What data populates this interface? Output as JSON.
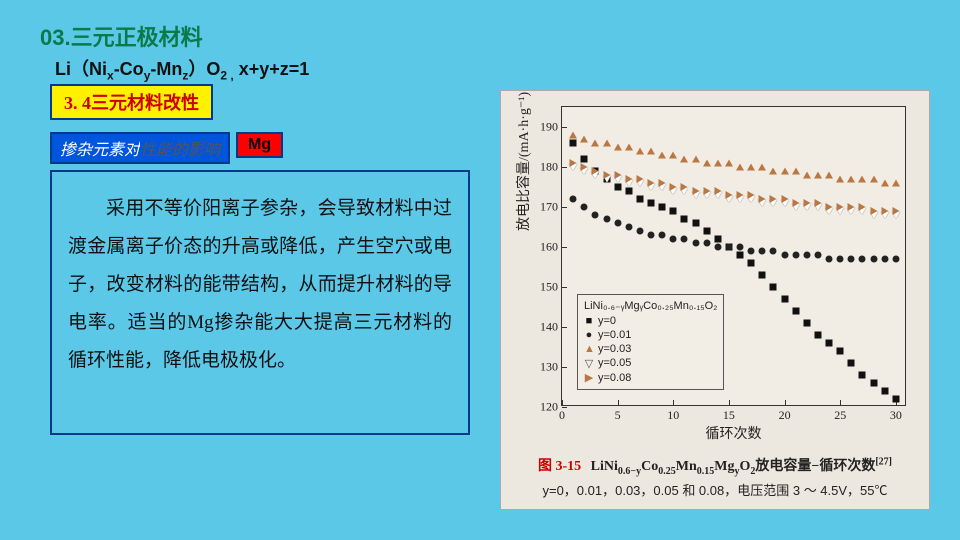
{
  "slide": {
    "title": "03.三元正极材料",
    "formula_html": "Li（Ni<sub>x</sub>-Co<sub>y</sub>-Mn<sub>z</sub>）O<sub>2 ,</sub> x+y+z=1",
    "section": "3. 4三元材料改性",
    "tag_main_a": "掺杂元素对",
    "tag_main_b": "性能的影响",
    "tag_element": "Mg",
    "body": "采用不等价阳离子参杂，会导致材料中过渡金属离子价态的升高或降低，产生空穴或电子，改变材料的能带结构，从而提升材料的导电率。适当的Mg掺杂能大大提高三元材料的循环性能，降低电极极化。"
  },
  "chart": {
    "type": "scatter",
    "background_color": "#ede8df",
    "plot_bg": "#f2ede4",
    "x_label": "循环次数",
    "y_label": "放电比容量/(mA·h·g⁻¹)",
    "xlim": [
      0,
      31
    ],
    "ylim": [
      120,
      195
    ],
    "x_ticks": [
      0,
      5,
      10,
      15,
      20,
      25,
      30
    ],
    "y_ticks": [
      120,
      130,
      140,
      150,
      160,
      170,
      180,
      190
    ],
    "legend_title": "LiNi₀.₆₋ᵧMgᵧCo₀.₂₅Mn₀.₁₅O₂",
    "series": [
      {
        "name": "y=0",
        "label": "y=0",
        "marker": "square",
        "color": "#111111",
        "x": [
          1,
          2,
          3,
          4,
          5,
          6,
          7,
          8,
          9,
          10,
          11,
          12,
          13,
          14,
          15,
          16,
          17,
          18,
          19,
          20,
          21,
          22,
          23,
          24,
          25,
          26,
          27,
          28,
          29,
          30
        ],
        "y": [
          186,
          182,
          179,
          177,
          175,
          174,
          172,
          171,
          170,
          169,
          167,
          166,
          164,
          162,
          160,
          158,
          156,
          153,
          150,
          147,
          144,
          141,
          138,
          136,
          134,
          131,
          128,
          126,
          124,
          122
        ]
      },
      {
        "name": "y=0.01",
        "label": "y=0.01",
        "marker": "circle",
        "color": "#222222",
        "x": [
          1,
          2,
          3,
          4,
          5,
          6,
          7,
          8,
          9,
          10,
          11,
          12,
          13,
          14,
          15,
          16,
          17,
          18,
          19,
          20,
          21,
          22,
          23,
          24,
          25,
          26,
          27,
          28,
          29,
          30
        ],
        "y": [
          172,
          170,
          168,
          167,
          166,
          165,
          164,
          163,
          163,
          162,
          162,
          161,
          161,
          160,
          160,
          160,
          159,
          159,
          159,
          158,
          158,
          158,
          158,
          157,
          157,
          157,
          157,
          157,
          157,
          157
        ]
      },
      {
        "name": "y=0.03",
        "label": "y=0.03",
        "marker": "triangle-up",
        "color": "#b97744",
        "x": [
          1,
          2,
          3,
          4,
          5,
          6,
          7,
          8,
          9,
          10,
          11,
          12,
          13,
          14,
          15,
          16,
          17,
          18,
          19,
          20,
          21,
          22,
          23,
          24,
          25,
          26,
          27,
          28,
          29,
          30
        ],
        "y": [
          188,
          187,
          186,
          186,
          185,
          185,
          184,
          184,
          183,
          183,
          182,
          182,
          181,
          181,
          181,
          180,
          180,
          180,
          179,
          179,
          179,
          178,
          178,
          178,
          177,
          177,
          177,
          177,
          176,
          176
        ]
      },
      {
        "name": "y=0.05",
        "label": "y=0.05",
        "marker": "triangle-down",
        "color": "#ffffff",
        "x": [
          1,
          2,
          3,
          4,
          5,
          6,
          7,
          8,
          9,
          10,
          11,
          12,
          13,
          14,
          15,
          16,
          17,
          18,
          19,
          20,
          21,
          22,
          23,
          24,
          25,
          26,
          27,
          28,
          29,
          30
        ],
        "y": [
          180,
          179,
          178,
          177,
          177,
          176,
          176,
          175,
          175,
          174,
          174,
          173,
          173,
          173,
          172,
          172,
          172,
          171,
          171,
          171,
          170,
          170,
          170,
          169,
          169,
          169,
          169,
          168,
          168,
          168
        ]
      },
      {
        "name": "y=0.08",
        "label": "y=0.08",
        "marker": "triangle-right",
        "color": "#b97744",
        "x": [
          1,
          2,
          3,
          4,
          5,
          6,
          7,
          8,
          9,
          10,
          11,
          12,
          13,
          14,
          15,
          16,
          17,
          18,
          19,
          20,
          21,
          22,
          23,
          24,
          25,
          26,
          27,
          28,
          29,
          30
        ],
        "y": [
          181,
          180,
          179,
          178,
          178,
          177,
          177,
          176,
          176,
          175,
          175,
          174,
          174,
          174,
          173,
          173,
          173,
          172,
          172,
          172,
          171,
          171,
          171,
          170,
          170,
          170,
          170,
          169,
          169,
          169
        ]
      }
    ],
    "caption_fignum": "图 3-15",
    "caption_main_html": "LiNi<sub>0.6−y</sub>Co<sub>0.25</sub>Mn<sub>0.15</sub>Mg<sub>y</sub>O<sub>2</sub>放电容量−循环次数<sup>[27]</sup>",
    "subcaption": "y=0，0.01，0.03，0.05 和 0.08，电压范围 3 ～ 4.5V，55℃"
  }
}
